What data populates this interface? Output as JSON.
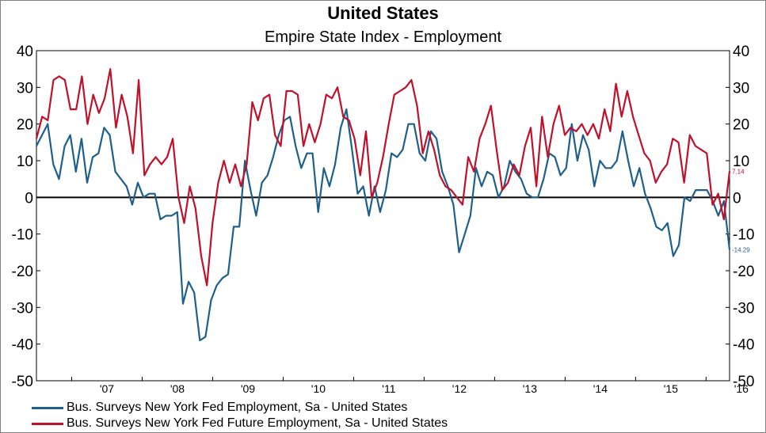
{
  "chart_data": {
    "type": "line",
    "title": "United States",
    "subtitle": "Empire State Index - Employment",
    "ylim": [
      -50,
      40
    ],
    "yticks": [
      40,
      30,
      20,
      10,
      0,
      -10,
      -20,
      -30,
      -40,
      -50
    ],
    "x_start": "2006-07",
    "x_end": "2016-05",
    "xticks": [
      {
        "label": "'07",
        "pos": "2007-07"
      },
      {
        "label": "'08",
        "pos": "2008-07"
      },
      {
        "label": "'09",
        "pos": "2009-07"
      },
      {
        "label": "'10",
        "pos": "2010-07"
      },
      {
        "label": "'11",
        "pos": "2011-07"
      },
      {
        "label": "'12",
        "pos": "2012-07"
      },
      {
        "label": "'13",
        "pos": "2013-07"
      },
      {
        "label": "'14",
        "pos": "2014-07"
      },
      {
        "label": "'15",
        "pos": "2015-07"
      },
      {
        "label": "'16",
        "pos": "2016-07"
      }
    ],
    "legend_position": "bottom-left",
    "series": [
      {
        "name": "Bus. Surveys New York Fed Employment, Sa - United States",
        "color": "#1f5f8b",
        "end_label": "-14.29",
        "values": [
          14,
          17,
          20,
          9,
          5,
          14,
          17,
          7,
          16,
          4,
          11,
          12,
          19,
          17,
          7,
          5,
          3,
          -2,
          4,
          0,
          1,
          1,
          -6,
          -5,
          -5,
          -4,
          -29,
          -23,
          -26,
          -39,
          -38,
          -28,
          -24,
          -22,
          -21,
          -8,
          -8,
          10,
          2,
          -5,
          4,
          6,
          11,
          17,
          21,
          22,
          14,
          8,
          12,
          12,
          -4,
          8,
          3,
          9,
          19,
          24,
          13,
          1,
          3,
          -5,
          3,
          -4,
          2,
          12,
          11,
          13,
          20,
          20,
          12,
          10,
          18,
          16,
          7,
          3,
          -2,
          -15,
          -10,
          -5,
          8,
          3,
          7,
          6,
          0,
          3,
          10,
          7,
          5,
          1,
          0,
          0,
          5,
          12,
          11,
          6,
          8,
          20,
          10,
          17,
          13,
          3,
          10,
          8,
          8,
          10,
          18,
          10,
          3,
          8,
          1,
          -3,
          -8,
          -9,
          -7,
          -16,
          -13,
          0,
          -1,
          2,
          2,
          2,
          -1,
          -5,
          -1,
          -14.29
        ]
      },
      {
        "name": "Bus. Surveys New York Fed Future Employment, Sa - United States",
        "color": "#c0102a",
        "end_label": "7.14",
        "values": [
          16,
          22,
          21,
          32,
          33,
          32,
          24,
          24,
          33,
          20,
          28,
          23,
          27,
          35,
          19,
          28,
          22,
          12,
          32,
          6,
          9,
          11,
          9,
          11,
          16,
          0,
          -7,
          3,
          -3,
          -16,
          -24,
          -7,
          4,
          10,
          4,
          9,
          3,
          9,
          26,
          21,
          27,
          28,
          17,
          14,
          29,
          29,
          28,
          14,
          20,
          15,
          20,
          28,
          27,
          30,
          22,
          21,
          16,
          6,
          18,
          0,
          4,
          11,
          20,
          28,
          29,
          30,
          32,
          25,
          12,
          18,
          13,
          6,
          3,
          2,
          0,
          -2,
          11,
          7,
          16,
          20,
          25,
          13,
          2,
          4,
          9,
          6,
          14,
          19,
          3,
          22,
          11,
          20,
          25,
          17,
          19,
          18,
          20,
          17,
          20,
          16,
          24,
          18,
          31,
          22,
          29,
          22,
          17,
          12,
          10,
          4,
          7,
          9,
          16,
          15,
          4,
          17,
          14,
          13,
          12,
          -2,
          1,
          -6,
          7.14
        ]
      }
    ]
  },
  "zero_line": 0
}
